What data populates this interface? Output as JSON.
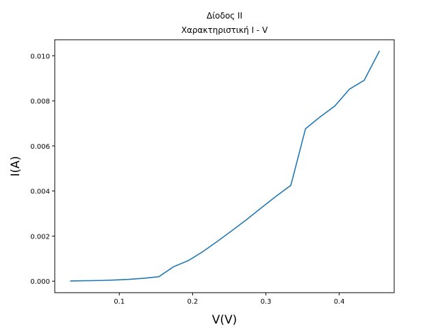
{
  "chart_data": {
    "type": "line",
    "title_line1": "Δίοδος ΙΙ",
    "title_line2": "Χαρακτηριστική Ι - V",
    "xlabel": "V(V)",
    "ylabel": "I(A)",
    "xlim": [
      0.012,
      0.475
    ],
    "ylim": [
      -0.00051,
      0.01071
    ],
    "xticks": [
      0.1,
      0.2,
      0.3,
      0.4
    ],
    "xtick_labels": [
      "0.1",
      "0.2",
      "0.3",
      "0.4"
    ],
    "yticks": [
      0.0,
      0.002,
      0.004,
      0.006,
      0.008,
      0.01
    ],
    "ytick_labels": [
      "0.000",
      "0.002",
      "0.004",
      "0.006",
      "0.008",
      "0.010"
    ],
    "grid": false,
    "line_color": "#1f77b4",
    "series": [
      {
        "x": [
          0.033,
          0.053,
          0.073,
          0.093,
          0.113,
          0.134,
          0.154,
          0.174,
          0.194,
          0.214,
          0.234,
          0.254,
          0.274,
          0.294,
          0.314,
          0.334,
          0.354,
          0.374,
          0.394,
          0.414,
          0.434,
          0.455
        ],
        "y": [
          1e-05,
          2e-05,
          3e-05,
          5e-05,
          8e-05,
          0.00013,
          0.0002,
          0.00064,
          0.00091,
          0.00131,
          0.00177,
          0.00225,
          0.00274,
          0.00326,
          0.00377,
          0.00425,
          0.00676,
          0.00729,
          0.00777,
          0.00852,
          0.00891,
          0.01022
        ]
      }
    ]
  }
}
